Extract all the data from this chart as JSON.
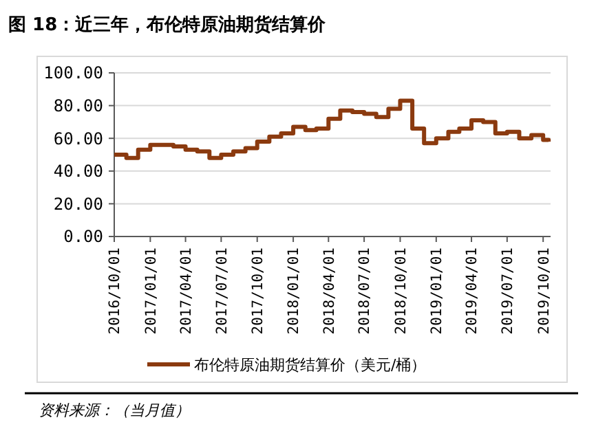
{
  "chart_data": {
    "type": "step",
    "title": "图 18：近三年，布伦特原油期货结算价",
    "x": [
      "2016-10-01",
      "2016-11-01",
      "2016-12-01",
      "2017-01-01",
      "2017-02-01",
      "2017-03-01",
      "2017-04-01",
      "2017-05-01",
      "2017-06-01",
      "2017-07-01",
      "2017-08-01",
      "2017-09-01",
      "2017-10-01",
      "2017-11-01",
      "2017-12-01",
      "2018-01-01",
      "2018-02-01",
      "2018-03-01",
      "2018-04-01",
      "2018-05-01",
      "2018-06-01",
      "2018-07-01",
      "2018-08-01",
      "2018-09-01",
      "2018-10-01",
      "2018-11-01",
      "2018-12-01",
      "2019-01-01",
      "2019-02-01",
      "2019-03-01",
      "2019-04-01",
      "2019-05-01",
      "2019-06-01",
      "2019-07-01",
      "2019-08-01",
      "2019-09-01",
      "2019-10-01",
      "2019-10-15"
    ],
    "series": [
      {
        "name": "布伦特原油期货结算价（美元/桶）",
        "color": "#8b3a0f",
        "values": [
          50,
          48,
          53,
          56,
          56,
          55,
          53,
          52,
          48,
          50,
          52,
          54,
          58,
          61,
          63,
          67,
          65,
          66,
          72,
          77,
          76,
          75,
          73,
          78,
          83,
          66,
          57,
          60,
          64,
          66,
          71,
          70,
          63,
          64,
          60,
          62,
          59,
          58
        ]
      }
    ],
    "xlim": [
      "2016-10-01",
      "2019-10-20"
    ],
    "xticks": [
      {
        "value": "2016-10-01",
        "label": "2016/10/01"
      },
      {
        "value": "2017-01-01",
        "label": "2017/01/01"
      },
      {
        "value": "2017-04-01",
        "label": "2017/04/01"
      },
      {
        "value": "2017-07-01",
        "label": "2017/07/01"
      },
      {
        "value": "2017-10-01",
        "label": "2017/10/01"
      },
      {
        "value": "2018-01-01",
        "label": "2018/01/01"
      },
      {
        "value": "2018-04-01",
        "label": "2018/04/01"
      },
      {
        "value": "2018-07-01",
        "label": "2018/07/01"
      },
      {
        "value": "2018-10-01",
        "label": "2018/10/01"
      },
      {
        "value": "2019-01-01",
        "label": "2019/01/01"
      },
      {
        "value": "2019-04-01",
        "label": "2019/04/01"
      },
      {
        "value": "2019-07-01",
        "label": "2019/07/01"
      },
      {
        "value": "2019-10-01",
        "label": "2019/10/01"
      }
    ],
    "ylim": [
      0,
      100
    ],
    "yticks": [
      {
        "value": 0,
        "label": "0.00"
      },
      {
        "value": 20,
        "label": "20.00"
      },
      {
        "value": 40,
        "label": "40.00"
      },
      {
        "value": 60,
        "label": "60.00"
      },
      {
        "value": 80,
        "label": "80.00"
      },
      {
        "value": 100,
        "label": "100.00"
      }
    ],
    "grid": "y",
    "legend": "bottom",
    "line_style": "solid",
    "annotations": [
      "资料来源：（当月值）"
    ]
  }
}
